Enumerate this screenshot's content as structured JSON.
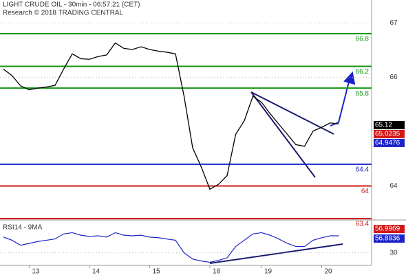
{
  "chart_data": {
    "type": "line",
    "title": "LIGHT CRUDE OIL - 30min - 06:57:21 (CET)",
    "subtitle": "Research © 2018 TRADING CENTRAL",
    "categories": [
      null,
      null,
      null,
      "13",
      null,
      null,
      null,
      null,
      null,
      null,
      "14",
      null,
      null,
      null,
      null,
      null,
      null,
      "15",
      null,
      null,
      null,
      null,
      null,
      null,
      "18",
      null,
      null,
      null,
      null,
      null,
      "19",
      null,
      null,
      null,
      null,
      null,
      null,
      "20",
      null,
      null
    ],
    "values": [
      66.15,
      66.03,
      65.84,
      65.77,
      65.8,
      65.82,
      65.85,
      66.15,
      66.43,
      66.34,
      66.33,
      66.38,
      66.41,
      66.63,
      66.53,
      66.51,
      66.56,
      66.51,
      66.48,
      66.46,
      66.43,
      65.65,
      64.7,
      64.35,
      63.94,
      64.03,
      64.19,
      64.95,
      65.2,
      65.65,
      65.54,
      65.33,
      65.14,
      64.95,
      64.76,
      64.73,
      65.01,
      65.08,
      65.16,
      65.14
    ],
    "color": "#000000",
    "ylim": [
      63.4,
      67.42
    ],
    "yticks": [
      64,
      66,
      67
    ],
    "grid": true,
    "levels": [
      {
        "value": 66.8,
        "color": "#129612"
      },
      {
        "value": 66.2,
        "color": "#129612"
      },
      {
        "value": 65.8,
        "color": "#129612"
      },
      {
        "value": 64.4,
        "color": "#1b24c8"
      },
      {
        "value": 64,
        "color": "#d01818"
      },
      {
        "value": 63.4,
        "color": "#d01818"
      }
    ],
    "price_labels": [
      {
        "value": 65.12,
        "color": "#000000"
      },
      {
        "value": 65.0235,
        "color": "#d01818"
      },
      {
        "value": 64.9476,
        "color": "#1b24c8"
      }
    ],
    "rsi": {
      "label": "RSI14 - 9MA",
      "values": [
        55,
        50,
        42,
        45,
        48,
        50,
        52,
        60,
        62,
        58,
        56,
        57,
        55,
        62,
        58,
        57,
        58,
        55,
        54,
        52,
        50,
        30,
        20,
        17,
        15,
        18,
        22,
        40,
        50,
        60,
        62,
        58,
        52,
        45,
        40,
        40,
        50,
        54,
        57,
        57
      ],
      "color": "#1b24c8",
      "ylim": [
        10,
        80
      ],
      "yticks": [
        30
      ],
      "value_labels": [
        {
          "value": 56.9969,
          "color": "#d01818"
        },
        {
          "value": 56.8936,
          "color": "#1b24c8"
        }
      ]
    }
  }
}
